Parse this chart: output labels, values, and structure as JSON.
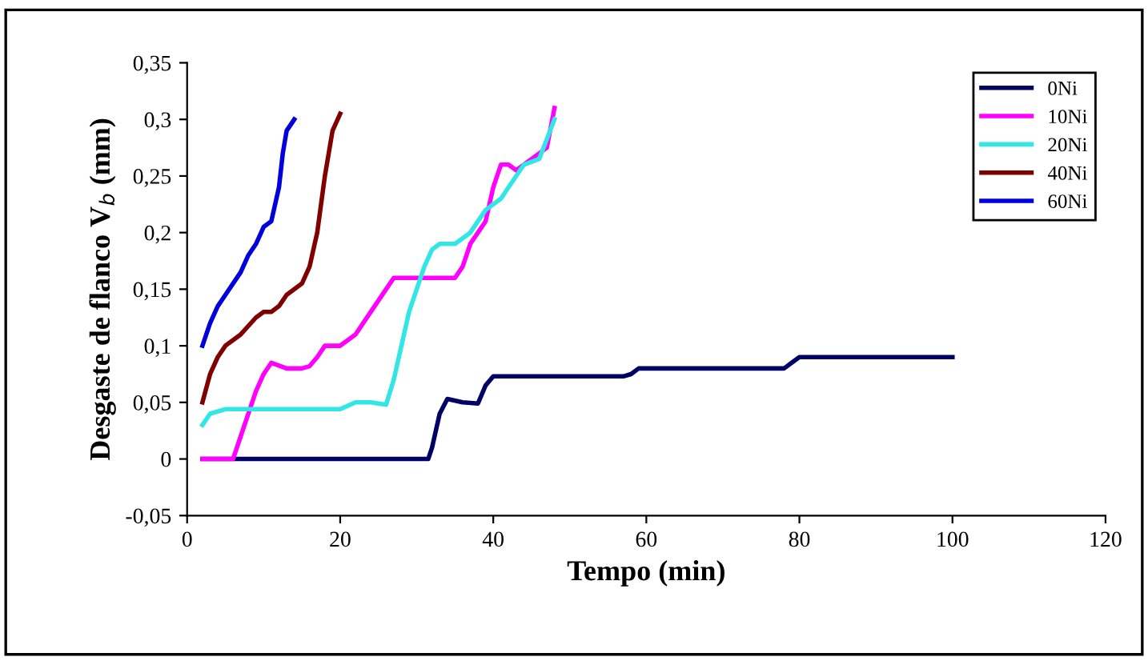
{
  "chart_data": {
    "type": "line",
    "xlabel": "Tempo (min)",
    "ylabel": "Desgaste de flanco V$_{b}$ (mm)",
    "xlim": [
      0,
      120
    ],
    "xticks": [
      0,
      20,
      40,
      60,
      80,
      100,
      120
    ],
    "ylim": [
      -0.05,
      0.35
    ],
    "yticks": [
      {
        "value": -0.05,
        "label": "-0,05"
      },
      0,
      {
        "value": 0.05,
        "label": "0,05"
      },
      {
        "value": 0.1,
        "label": "0,1"
      },
      {
        "value": 0.15,
        "label": "0,15"
      },
      {
        "value": 0.2,
        "label": "0,2"
      },
      {
        "value": 0.25,
        "label": "0,25"
      },
      {
        "value": 0.3,
        "label": "0,3"
      },
      {
        "value": 0.35,
        "label": "0,35"
      }
    ],
    "grid": false,
    "legend": "top right",
    "marker": "none",
    "line_style": "solid",
    "series": [
      {
        "name": "0Ni",
        "color": "#000066",
        "x": [
          2,
          31.5,
          32,
          33,
          34,
          36,
          38,
          39,
          40,
          57,
          58,
          59,
          78,
          79,
          80,
          100
        ],
        "values": [
          0,
          0,
          0.01,
          0.04,
          0.053,
          0.05,
          0.049,
          0.065,
          0.073,
          0.073,
          0.075,
          0.08,
          0.08,
          0.085,
          0.09,
          0.09
        ]
      },
      {
        "name": "10Ni",
        "color": "#ff00ff",
        "x": [
          2,
          6,
          7,
          8,
          9,
          10,
          11,
          13,
          15,
          16,
          17,
          18,
          20,
          22,
          24,
          26,
          27,
          35,
          36,
          37,
          38,
          39,
          40,
          41,
          42,
          43,
          44,
          46,
          47,
          48
        ],
        "values": [
          0,
          0,
          0.02,
          0.04,
          0.06,
          0.075,
          0.085,
          0.08,
          0.08,
          0.082,
          0.09,
          0.1,
          0.1,
          0.11,
          0.13,
          0.15,
          0.16,
          0.16,
          0.17,
          0.19,
          0.2,
          0.21,
          0.24,
          0.26,
          0.26,
          0.255,
          0.26,
          0.27,
          0.275,
          0.31
        ]
      },
      {
        "name": "20Ni",
        "color": "#33e6e6",
        "x": [
          2,
          3,
          5,
          20,
          22,
          24,
          26,
          27,
          28,
          29,
          31,
          32,
          33,
          35,
          37,
          39,
          41,
          42,
          44,
          46,
          48
        ],
        "values": [
          0.03,
          0.04,
          0.044,
          0.044,
          0.05,
          0.05,
          0.048,
          0.07,
          0.1,
          0.13,
          0.17,
          0.185,
          0.19,
          0.19,
          0.2,
          0.22,
          0.23,
          0.24,
          0.26,
          0.265,
          0.3
        ]
      },
      {
        "name": "40Ni",
        "color": "#800000",
        "x": [
          2,
          3,
          4,
          5,
          7,
          9,
          10,
          11,
          12,
          13,
          15,
          16,
          17,
          18,
          19,
          20
        ],
        "values": [
          0.05,
          0.075,
          0.09,
          0.1,
          0.11,
          0.125,
          0.13,
          0.13,
          0.135,
          0.145,
          0.155,
          0.17,
          0.2,
          0.25,
          0.29,
          0.305
        ]
      },
      {
        "name": "60Ni",
        "color": "#0000dd",
        "x": [
          2,
          3,
          4,
          5,
          7,
          8,
          9,
          10,
          11,
          12,
          12.5,
          13,
          14
        ],
        "values": [
          0.1,
          0.12,
          0.135,
          0.145,
          0.165,
          0.18,
          0.19,
          0.205,
          0.21,
          0.24,
          0.27,
          0.29,
          0.3
        ]
      }
    ]
  }
}
